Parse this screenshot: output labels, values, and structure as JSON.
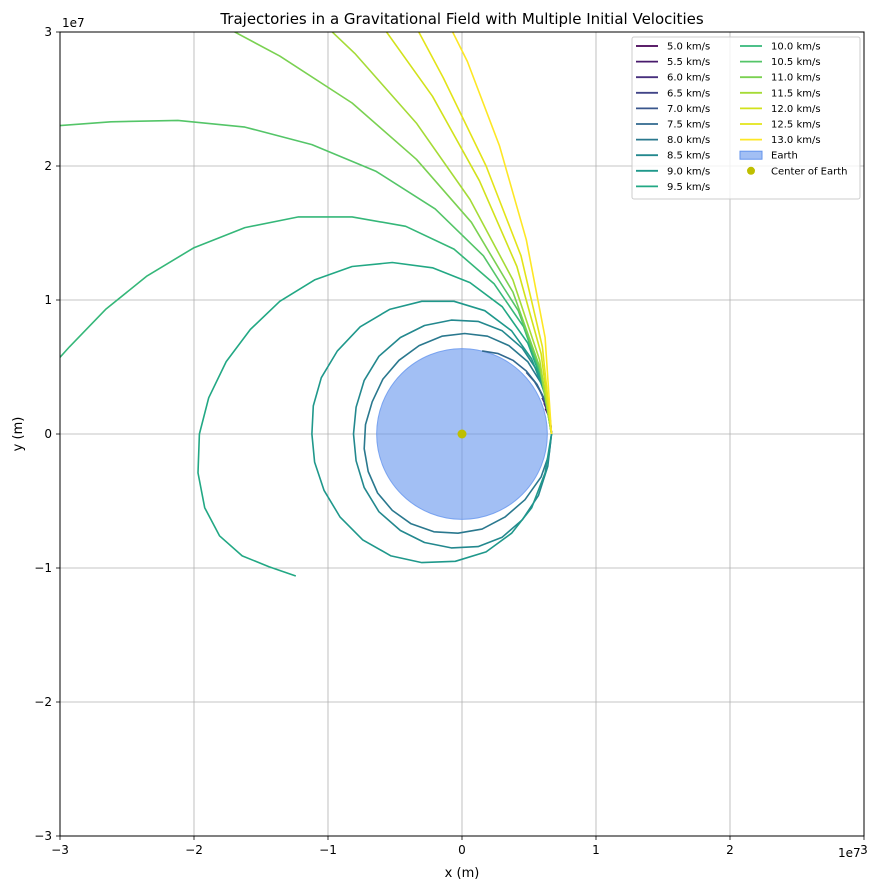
{
  "chart_data": {
    "type": "line",
    "title": "Trajectories in a Gravitational Field with Multiple Initial Velocities",
    "xlabel": "x (m)",
    "ylabel": "y (m)",
    "offset_label_x": "1e7",
    "offset_label_y": "1e7",
    "xlim": [
      -3,
      3
    ],
    "ylim": [
      -3,
      3
    ],
    "xticks": [
      -3,
      -2,
      -1,
      0,
      1,
      2,
      3
    ],
    "yticks": [
      -3,
      -2,
      -1,
      0,
      1,
      2,
      3
    ],
    "xtick_labels": [
      "−3",
      "−2",
      "−1",
      "0",
      "1",
      "2",
      "3"
    ],
    "ytick_labels": [
      "−3",
      "−2",
      "−1",
      "0",
      "1",
      "2",
      "3"
    ],
    "grid": true,
    "legend_position": "top-right",
    "legend_columns": 2,
    "earth": {
      "label": "Earth",
      "center": [
        0,
        0
      ],
      "radius": 0.637,
      "color": "#6495ed"
    },
    "center_marker": {
      "label": "Center of Earth",
      "point": [
        0,
        0
      ],
      "color": "#bfbf00"
    },
    "series": [
      {
        "name": "5.0 km/s",
        "color": "#440154",
        "points": [
          [
            0.668,
            0
          ],
          [
            0.664,
            0.05
          ],
          [
            0.655,
            0.1
          ],
          [
            0.64,
            0.15
          ],
          [
            0.622,
            0.19
          ]
        ]
      },
      {
        "name": "5.5 km/s",
        "color": "#481a6c",
        "points": [
          [
            0.668,
            0
          ],
          [
            0.663,
            0.06
          ],
          [
            0.652,
            0.12
          ],
          [
            0.634,
            0.18
          ],
          [
            0.612,
            0.23
          ]
        ]
      },
      {
        "name": "6.0 km/s",
        "color": "#472f7d",
        "points": [
          [
            0.668,
            0
          ],
          [
            0.662,
            0.07
          ],
          [
            0.648,
            0.14
          ],
          [
            0.626,
            0.21
          ],
          [
            0.598,
            0.27
          ]
        ]
      },
      {
        "name": "6.5 km/s",
        "color": "#414487",
        "points": [
          [
            0.668,
            0
          ],
          [
            0.661,
            0.08
          ],
          [
            0.643,
            0.17
          ],
          [
            0.615,
            0.25
          ],
          [
            0.578,
            0.33
          ]
        ]
      },
      {
        "name": "7.0 km/s",
        "color": "#39568c",
        "points": [
          [
            0.668,
            0
          ],
          [
            0.659,
            0.1
          ],
          [
            0.634,
            0.2
          ],
          [
            0.595,
            0.3
          ],
          [
            0.542,
            0.39
          ],
          [
            0.48,
            0.46
          ]
        ]
      },
      {
        "name": "7.5 km/s",
        "color": "#31688e",
        "points": [
          [
            0.668,
            0
          ],
          [
            0.656,
            0.13
          ],
          [
            0.62,
            0.25
          ],
          [
            0.56,
            0.37
          ],
          [
            0.48,
            0.47
          ],
          [
            0.38,
            0.55
          ],
          [
            0.27,
            0.6
          ],
          [
            0.15,
            0.62
          ]
        ]
      },
      {
        "name": "8.0 km/s",
        "color": "#2a788e",
        "points": [
          [
            0.668,
            0
          ],
          [
            0.65,
            0.2
          ],
          [
            0.59,
            0.38
          ],
          [
            0.49,
            0.54
          ],
          [
            0.35,
            0.66
          ],
          [
            0.19,
            0.73
          ],
          [
            0.02,
            0.75
          ],
          [
            -0.15,
            0.73
          ],
          [
            -0.32,
            0.66
          ],
          [
            -0.47,
            0.55
          ],
          [
            -0.59,
            0.41
          ],
          [
            -0.67,
            0.24
          ],
          [
            -0.72,
            0.07
          ],
          [
            -0.73,
            -0.11
          ],
          [
            -0.7,
            -0.28
          ],
          [
            -0.63,
            -0.44
          ],
          [
            -0.52,
            -0.57
          ],
          [
            -0.38,
            -0.67
          ],
          [
            -0.21,
            -0.73
          ],
          [
            -0.03,
            -0.74
          ],
          [
            0.15,
            -0.71
          ],
          [
            0.32,
            -0.62
          ],
          [
            0.47,
            -0.49
          ],
          [
            0.59,
            -0.32
          ],
          [
            0.65,
            -0.15
          ],
          [
            0.668,
            0
          ]
        ]
      },
      {
        "name": "8.5 km/s",
        "color": "#23888e",
        "points": [
          [
            0.668,
            0
          ],
          [
            0.64,
            0.24
          ],
          [
            0.57,
            0.46
          ],
          [
            0.45,
            0.64
          ],
          [
            0.3,
            0.77
          ],
          [
            0.12,
            0.84
          ],
          [
            -0.08,
            0.85
          ],
          [
            -0.28,
            0.81
          ],
          [
            -0.46,
            0.72
          ],
          [
            -0.62,
            0.58
          ],
          [
            -0.73,
            0.4
          ],
          [
            -0.79,
            0.2
          ],
          [
            -0.81,
            0
          ],
          [
            -0.79,
            -0.2
          ],
          [
            -0.73,
            -0.4
          ],
          [
            -0.62,
            -0.58
          ],
          [
            -0.46,
            -0.72
          ],
          [
            -0.28,
            -0.81
          ],
          [
            -0.08,
            -0.85
          ],
          [
            0.12,
            -0.84
          ],
          [
            0.3,
            -0.77
          ],
          [
            0.45,
            -0.64
          ],
          [
            0.57,
            -0.46
          ],
          [
            0.64,
            -0.24
          ],
          [
            0.668,
            0
          ]
        ]
      },
      {
        "name": "9.0 km/s",
        "color": "#1f988b",
        "points": [
          [
            0.668,
            0
          ],
          [
            0.62,
            0.3
          ],
          [
            0.52,
            0.56
          ],
          [
            0.37,
            0.77
          ],
          [
            0.17,
            0.92
          ],
          [
            -0.06,
            0.99
          ],
          [
            -0.3,
            0.99
          ],
          [
            -0.54,
            0.93
          ],
          [
            -0.76,
            0.8
          ],
          [
            -0.93,
            0.62
          ],
          [
            -1.05,
            0.42
          ],
          [
            -1.11,
            0.21
          ],
          [
            -1.12,
            0
          ],
          [
            -1.1,
            -0.21
          ],
          [
            -1.03,
            -0.42
          ],
          [
            -0.91,
            -0.62
          ],
          [
            -0.74,
            -0.79
          ],
          [
            -0.53,
            -0.91
          ],
          [
            -0.3,
            -0.96
          ],
          [
            -0.05,
            -0.95
          ],
          [
            0.18,
            -0.88
          ],
          [
            0.37,
            -0.74
          ],
          [
            0.52,
            -0.55
          ],
          [
            0.62,
            -0.29
          ],
          [
            0.668,
            0
          ]
        ]
      },
      {
        "name": "9.5 km/s",
        "color": "#22a884",
        "points": [
          [
            0.668,
            0
          ],
          [
            0.61,
            0.36
          ],
          [
            0.49,
            0.68
          ],
          [
            0.3,
            0.95
          ],
          [
            0.06,
            1.13
          ],
          [
            -0.22,
            1.24
          ],
          [
            -0.52,
            1.28
          ],
          [
            -0.82,
            1.25
          ],
          [
            -1.1,
            1.15
          ],
          [
            -1.36,
            0.99
          ],
          [
            -1.58,
            0.78
          ],
          [
            -1.76,
            0.54
          ],
          [
            -1.89,
            0.27
          ],
          [
            -1.96,
            0
          ],
          [
            -1.97,
            -0.29
          ],
          [
            -1.92,
            -0.55
          ],
          [
            -1.81,
            -0.76
          ],
          [
            -1.64,
            -0.91
          ],
          [
            -1.44,
            -0.99
          ],
          [
            -1.24,
            -1.06
          ]
        ]
      },
      {
        "name": "10.0 km/s",
        "color": "#35b779",
        "points": [
          [
            0.668,
            0
          ],
          [
            0.6,
            0.4
          ],
          [
            0.46,
            0.8
          ],
          [
            0.24,
            1.12
          ],
          [
            -0.06,
            1.38
          ],
          [
            -0.42,
            1.55
          ],
          [
            -0.82,
            1.62
          ],
          [
            -1.22,
            1.62
          ],
          [
            -1.62,
            1.54
          ],
          [
            -2.0,
            1.39
          ],
          [
            -2.35,
            1.18
          ],
          [
            -2.66,
            0.93
          ],
          [
            -2.93,
            0.65
          ],
          [
            -3.02,
            0.55
          ]
        ]
      },
      {
        "name": "10.5 km/s",
        "color": "#54c568",
        "points": [
          [
            0.668,
            0
          ],
          [
            0.59,
            0.45
          ],
          [
            0.42,
            0.92
          ],
          [
            0.16,
            1.33
          ],
          [
            -0.2,
            1.68
          ],
          [
            -0.64,
            1.96
          ],
          [
            -1.12,
            2.16
          ],
          [
            -1.62,
            2.29
          ],
          [
            -2.12,
            2.34
          ],
          [
            -2.62,
            2.33
          ],
          [
            -3.02,
            2.3
          ]
        ]
      },
      {
        "name": "11.0 km/s",
        "color": "#7ad151",
        "points": [
          [
            0.668,
            0
          ],
          [
            0.58,
            0.5
          ],
          [
            0.38,
            1.06
          ],
          [
            0.07,
            1.58
          ],
          [
            -0.34,
            2.05
          ],
          [
            -0.82,
            2.47
          ],
          [
            -1.36,
            2.82
          ],
          [
            -1.92,
            3.12
          ],
          [
            -2.1,
            3.22
          ]
        ]
      },
      {
        "name": "11.5 km/s",
        "color": "#a5db36",
        "points": [
          [
            0.668,
            0
          ],
          [
            0.58,
            0.55
          ],
          [
            0.38,
            1.15
          ],
          [
            0.06,
            1.75
          ],
          [
            -0.34,
            2.32
          ],
          [
            -0.8,
            2.84
          ],
          [
            -1.2,
            3.22
          ]
        ]
      },
      {
        "name": "12.0 km/s",
        "color": "#d2e21b",
        "points": [
          [
            0.668,
            0
          ],
          [
            0.59,
            0.6
          ],
          [
            0.41,
            1.25
          ],
          [
            0.13,
            1.89
          ],
          [
            -0.22,
            2.52
          ],
          [
            -0.62,
            3.08
          ],
          [
            -0.74,
            3.22
          ]
        ]
      },
      {
        "name": "12.5 km/s",
        "color": "#e3e418",
        "points": [
          [
            0.668,
            0
          ],
          [
            0.6,
            0.65
          ],
          [
            0.44,
            1.33
          ],
          [
            0.18,
            2.0
          ],
          [
            -0.14,
            2.66
          ],
          [
            -0.44,
            3.22
          ]
        ]
      },
      {
        "name": "13.0 km/s",
        "color": "#fde725",
        "points": [
          [
            0.668,
            0
          ],
          [
            0.62,
            0.72
          ],
          [
            0.48,
            1.45
          ],
          [
            0.28,
            2.15
          ],
          [
            0.04,
            2.78
          ],
          [
            -0.18,
            3.22
          ]
        ]
      }
    ]
  }
}
